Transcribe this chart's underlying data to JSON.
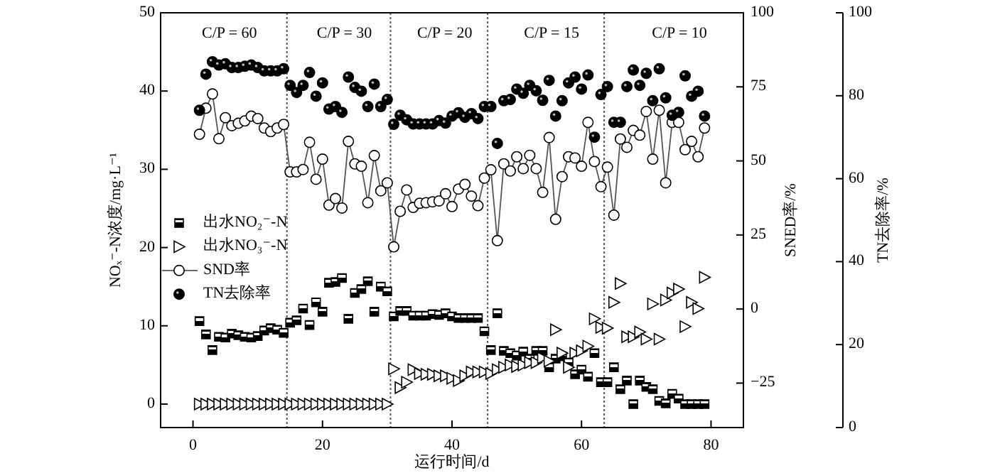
{
  "chart_data": {
    "type": "scatter",
    "xlabel": "运行时间/d",
    "ylabel": "NOₓ⁻-N浓度/mg·L⁻¹",
    "y2label": "SNED率/%",
    "y3label": "TN去除率/%",
    "x": [
      1,
      2,
      3,
      4,
      5,
      6,
      7,
      8,
      9,
      10,
      11,
      12,
      13,
      14,
      15,
      16,
      17,
      18,
      19,
      20,
      21,
      22,
      23,
      24,
      25,
      26,
      27,
      28,
      29,
      30,
      31,
      32,
      33,
      34,
      35,
      36,
      37,
      38,
      39,
      40,
      41,
      42,
      43,
      44,
      45,
      46,
      47,
      48,
      49,
      50,
      51,
      52,
      53,
      54,
      55,
      56,
      57,
      58,
      59,
      60,
      61,
      62,
      63,
      64,
      65,
      66,
      67,
      68,
      69,
      70,
      71,
      72,
      73,
      74,
      75,
      76,
      77,
      78,
      79
    ],
    "xlim": [
      -5,
      85
    ],
    "xticks": [
      0,
      20,
      40,
      60,
      80
    ],
    "ylim": [
      -3,
      50
    ],
    "yticks": [
      0,
      10,
      20,
      30,
      40,
      50
    ],
    "y2lim": [
      -40,
      100
    ],
    "y2ticks": [
      -25,
      0,
      25,
      50,
      75,
      100
    ],
    "y3lim": [
      0,
      100
    ],
    "y3ticks": [
      0,
      20,
      40,
      60,
      80,
      100
    ],
    "legend": "left",
    "series": [
      {
        "name": "出水NO₂⁻-N",
        "marker": "square",
        "color": "#000000",
        "values": [
          10.6,
          8.9,
          6.9,
          8.6,
          8.5,
          9.0,
          8.8,
          8.6,
          8.5,
          8.7,
          9.4,
          9.7,
          9.5,
          9.1,
          10.4,
          10.7,
          12.2,
          10.1,
          13.0,
          11.8,
          15.5,
          15.6,
          16.1,
          10.9,
          14.2,
          14.7,
          15.7,
          11.8,
          15.0,
          14.4,
          11.2,
          11.9,
          11.9,
          11.3,
          11.3,
          11.3,
          11.5,
          11.4,
          11.6,
          11.2,
          11.0,
          11.0,
          11.0,
          11.0,
          9.3,
          6.9,
          11.6,
          6.8,
          6.5,
          6.2,
          6.7,
          5.8,
          6.8,
          6.8,
          4.7,
          5.8,
          6.1,
          5.3,
          3.8,
          4.4,
          3.5,
          6.5,
          2.8,
          2.8,
          4.7,
          1.9,
          3.0,
          0.0,
          3.0,
          2.2,
          1.9,
          0.4,
          0.1,
          1.3,
          0.7,
          0.0,
          0.0,
          0.0,
          0.0
        ]
      },
      {
        "name": "出水NO₃⁻-N",
        "marker": "triangle",
        "color": "#000000",
        "values": [
          0,
          0,
          0,
          0,
          0,
          0,
          0,
          0,
          0,
          0,
          0,
          0,
          0,
          0,
          0,
          0,
          0,
          0,
          0,
          0,
          0,
          0,
          0,
          0,
          0,
          0,
          0,
          0,
          0,
          0,
          4.5,
          2.1,
          2.8,
          4.4,
          3.9,
          3.8,
          3.8,
          3.6,
          3.6,
          3.3,
          3.0,
          3.6,
          4.1,
          4.1,
          4.1,
          3.9,
          4.4,
          4.7,
          5.0,
          4.8,
          5.0,
          5.3,
          5.3,
          5.9,
          5.5,
          9.5,
          6.5,
          4.7,
          6.5,
          6.8,
          7.4,
          10.9,
          9.8,
          9.7,
          13.0,
          15.4,
          8.6,
          8.6,
          9.2,
          8.3,
          12.8,
          8.3,
          13.3,
          14.2,
          14.7,
          9.9,
          13.0,
          12.2,
          16.2
        ]
      },
      {
        "name": "SND率",
        "type": "line",
        "axis": "y2",
        "marker": "circle",
        "color": "#000000",
        "values": [
          59.0,
          67.8,
          72.6,
          57.5,
          64.6,
          61.9,
          62.7,
          63.5,
          65.1,
          64.3,
          61.1,
          59.9,
          61.1,
          62.3,
          46.3,
          46.3,
          47.1,
          56.3,
          43.8,
          50.6,
          35.1,
          37.3,
          34.1,
          56.6,
          49.0,
          48.2,
          35.9,
          51.8,
          39.9,
          42.6,
          21.0,
          33.0,
          40.2,
          34.3,
          35.7,
          35.9,
          36.2,
          36.5,
          38.9,
          34.6,
          40.5,
          42.1,
          38.1,
          34.9,
          44.2,
          47.0,
          23.1,
          49.0,
          46.6,
          51.4,
          47.4,
          51.9,
          47.4,
          39.4,
          57.9,
          30.3,
          44.7,
          51.4,
          51.0,
          48.2,
          63.0,
          49.8,
          41.3,
          47.9,
          31.7,
          57.4,
          54.6,
          60.3,
          58.7,
          66.7,
          50.6,
          67.1,
          42.6,
          63.0,
          63.0,
          53.8,
          56.6,
          51.4,
          61.1
        ]
      },
      {
        "name": "TN去除率",
        "axis": "y3",
        "marker": "circle",
        "color": "#000000",
        "values": [
          76.5,
          85.2,
          88.2,
          87.4,
          87.7,
          86.8,
          86.8,
          87.1,
          87.4,
          86.8,
          86.0,
          86.0,
          86.0,
          86.5,
          82.5,
          80.8,
          82.5,
          85.6,
          79.9,
          83.1,
          76.8,
          77.4,
          76.0,
          84.5,
          82.0,
          81.1,
          77.4,
          82.8,
          77.4,
          79.1,
          73.1,
          75.3,
          74.2,
          73.2,
          73.2,
          73.2,
          73.2,
          74.0,
          73.4,
          75.1,
          75.9,
          74.8,
          75.7,
          74.5,
          77.4,
          77.4,
          68.5,
          78.8,
          79.1,
          81.6,
          80.6,
          82.5,
          81.2,
          78.9,
          83.7,
          75.1,
          78.8,
          83.1,
          84.5,
          81.6,
          85.0,
          70.0,
          80.3,
          82.2,
          73.6,
          73.6,
          82.2,
          86.2,
          82.5,
          85.4,
          78.8,
          86.5,
          79.5,
          75.3,
          76.0,
          84.8,
          79.9,
          81.1,
          75.1
        ]
      }
    ],
    "ref_lines": [
      {
        "axis": "x",
        "value": 14.5,
        "line_style": "dotted",
        "color": "#555555"
      },
      {
        "axis": "x",
        "value": 30.5,
        "line_style": "dotted",
        "color": "#555555"
      },
      {
        "axis": "x",
        "value": 45.5,
        "line_style": "dotted",
        "color": "#555555"
      },
      {
        "axis": "x",
        "value": 63.5,
        "line_style": "dotted",
        "color": "#555555"
      }
    ],
    "annotations": [
      "C/P = 60",
      "C/P = 30",
      "C/P = 20",
      "C/P = 15",
      "C/P = 10"
    ]
  }
}
